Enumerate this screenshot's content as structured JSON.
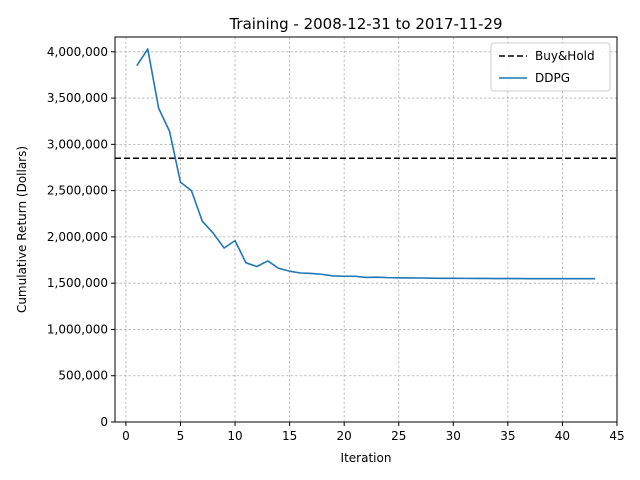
{
  "chart_data": {
    "type": "line",
    "title": "Training - 2008-12-31 to 2017-11-29",
    "xlabel": "Iteration",
    "ylabel": "Cumulative Return (Dollars)",
    "xlim": [
      -1,
      45
    ],
    "ylim": [
      0,
      4160000
    ],
    "x_ticks": [
      0,
      5,
      10,
      15,
      20,
      25,
      30,
      35,
      40,
      45
    ],
    "x_tick_labels": [
      "0",
      "5",
      "10",
      "15",
      "20",
      "25",
      "30",
      "35",
      "40",
      "45"
    ],
    "y_ticks": [
      0,
      500000,
      1000000,
      1500000,
      2000000,
      2500000,
      3000000,
      3500000,
      4000000
    ],
    "y_tick_labels": [
      "0",
      "500,000",
      "1,000,000",
      "1,500,000",
      "2,000,000",
      "2,500,000",
      "3,000,000",
      "3,500,000",
      "4,000,000"
    ],
    "grid": true,
    "legend_position": "top-right",
    "series": [
      {
        "name": "Buy&Hold",
        "kind": "hline",
        "style": "dashed",
        "color": "#000000",
        "y": 2850000
      },
      {
        "name": "DDPG",
        "kind": "line",
        "style": "solid",
        "color": "#1f77b4",
        "x": [
          1,
          2,
          3,
          4,
          5,
          6,
          7,
          8,
          9,
          10,
          11,
          12,
          13,
          14,
          15,
          16,
          17,
          18,
          19,
          20,
          21,
          22,
          23,
          24,
          25,
          26,
          27,
          28,
          29,
          30,
          31,
          32,
          33,
          34,
          35,
          36,
          37,
          38,
          39,
          40,
          41,
          42,
          43
        ],
        "values": [
          3850000,
          4030000,
          3390000,
          3140000,
          2590000,
          2500000,
          2170000,
          2040000,
          1880000,
          1960000,
          1720000,
          1680000,
          1740000,
          1660000,
          1630000,
          1610000,
          1605000,
          1595000,
          1578000,
          1575000,
          1575000,
          1562000,
          1565000,
          1560000,
          1558000,
          1557000,
          1556000,
          1554000,
          1553000,
          1553000,
          1552000,
          1551000,
          1551000,
          1550000,
          1550000,
          1550000,
          1549000,
          1549000,
          1549000,
          1549000,
          1549000,
          1549000,
          1549000
        ]
      }
    ]
  }
}
